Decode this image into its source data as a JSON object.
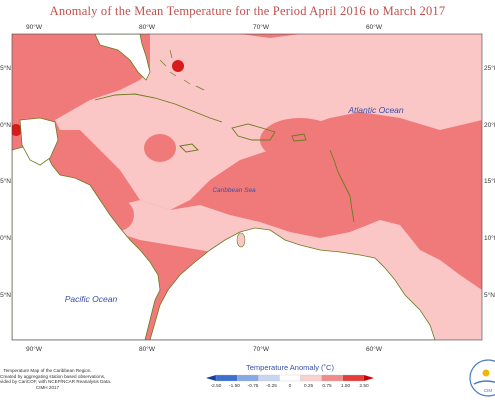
{
  "title": "Anomaly of the Mean Temperature for the Period April 2016 to March 2017",
  "map": {
    "region": "Caribbean Region",
    "labels": {
      "atlantic": "Atlantic Ocean",
      "caribbean": "Caribbean Sea",
      "pacific": "Pacific Ocean"
    },
    "lon_ticks": [
      "90°W",
      "80°W",
      "70°W",
      "60°W"
    ],
    "lat_ticks_left": [
      "5°N",
      "0°N",
      "5°N",
      "0°N",
      "5°N"
    ],
    "lat_ticks_right": [
      "25°N",
      "20°N",
      "15°N",
      "10°N",
      "5°N"
    ]
  },
  "footer": {
    "lines": [
      "Temperature Map of the Caribbean Region.",
      "Created by aggregating station based observations,",
      "vided by CariCOF, with NCEP/NCAR Reanalysis Data.",
      "CIMH 2017"
    ]
  },
  "legend": {
    "title": "Temperature Anomaly (˚C)",
    "ticks": [
      "-2.50",
      "-1.50",
      "-0.75",
      "-0.25",
      "0",
      "0.25",
      "0.75",
      "1.50",
      "2.50"
    ],
    "colors": [
      "#0d3fa6",
      "#3e6fd0",
      "#87a8e6",
      "#c8d6f2",
      "#ffffff",
      "#fbd0d0",
      "#f28a8a",
      "#e53c3c",
      "#cc0000"
    ]
  },
  "logo": {
    "text": "CIM"
  },
  "colors": {
    "anomaly_low": "#fbc6c6",
    "anomaly_mid": "#f07a7a",
    "anomaly_high": "#d91a1a",
    "land": "#ffffff",
    "coast": "#6b7a1e",
    "title": "#c0504d"
  }
}
